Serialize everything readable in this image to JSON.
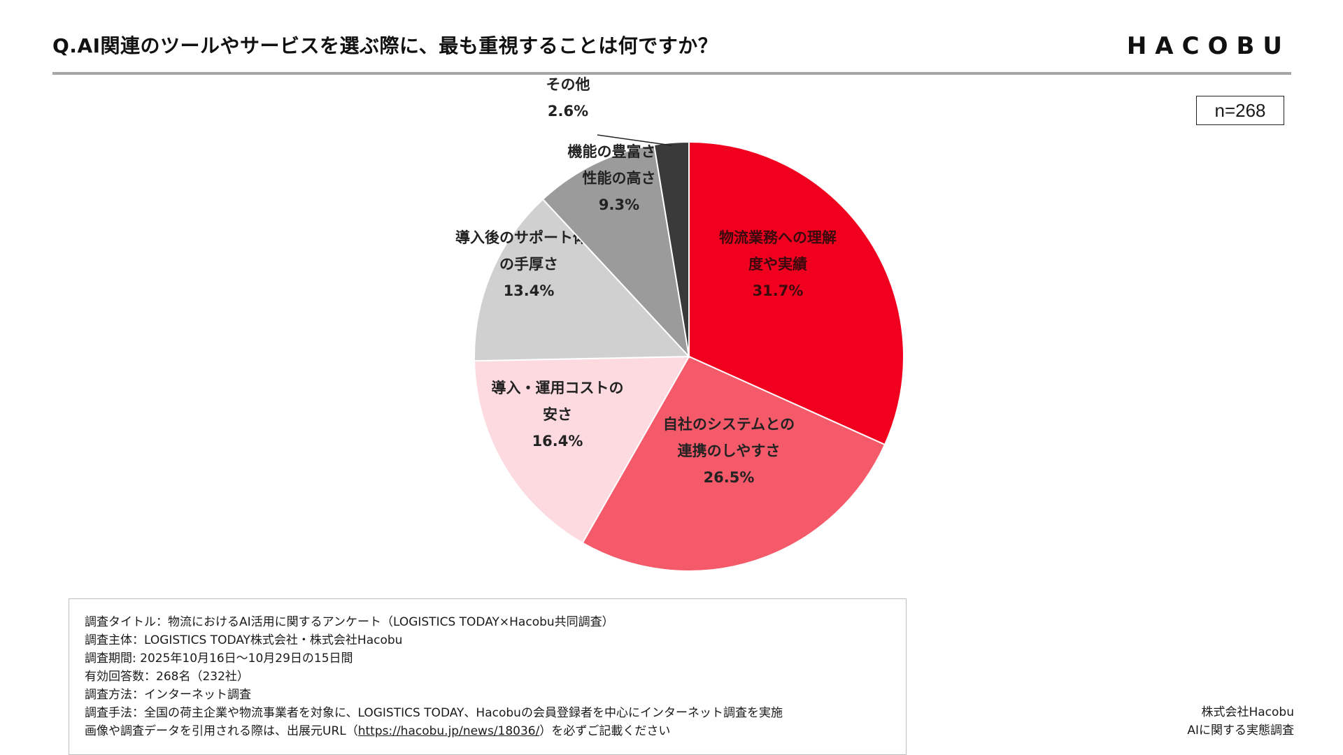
{
  "header": {
    "title": "Q.AI関連のツールやサービスを選ぶ際に、最も重視することは何ですか？",
    "logo_text": "HACOBU"
  },
  "sample_size": "n=268",
  "chart_data": {
    "type": "pie",
    "unit": "%",
    "start": "12 o'clock, clockwise",
    "slices": [
      {
        "label_lines": [
          "物流業務への理解",
          "度や実績"
        ],
        "value": 31.7,
        "display": "31.7%",
        "color": "#F0001E",
        "text_color": "#3a0a0f"
      },
      {
        "label_lines": [
          "自社のシステムとの",
          "連携のしやすさ"
        ],
        "value": 26.5,
        "display": "26.5%",
        "color": "#F55A6A",
        "text_color": "#222222"
      },
      {
        "label_lines": [
          "導入・運用コストの",
          "安さ"
        ],
        "value": 16.4,
        "display": "16.4%",
        "color": "#FDDADF",
        "text_color": "#222222"
      },
      {
        "label_lines": [
          "導入後のサポート体制",
          "の手厚さ"
        ],
        "value": 13.4,
        "display": "13.4%",
        "color": "#D0D0D0",
        "text_color": "#222222"
      },
      {
        "label_lines": [
          "機能の豊富さ・",
          "性能の高さ"
        ],
        "value": 9.3,
        "display": "9.3%",
        "color": "#9B9B9B",
        "text_color": "#222222"
      },
      {
        "label_lines": [
          "その他"
        ],
        "value": 2.6,
        "display": "2.6%",
        "color": "#3A3A3A",
        "text_color": "#222222",
        "callout": true
      }
    ]
  },
  "survey_notes": {
    "lines": [
      "調査タイトル：物流におけるAI活用に関するアンケート（LOGISTICS TODAY×Hacobu共同調査）",
      "調査主体：LOGISTICS TODAY株式会社・株式会社Hacobu",
      "調査期間: 2025年10月16日～10月29日の15日間",
      "有効回答数：268名（232社）",
      "調査方法：インターネット調査",
      "調査手法：全国の荷主企業や物流事業者を対象に、LOGISTICS TODAY、Hacobuの会員登録者を中心にインターネット調査を実施"
    ],
    "citation_prefix": "画像や調査データを引用される際は、出展元URL（",
    "citation_url": "https://hacobu.jp/news/18036/",
    "citation_suffix": "）を必ずご記載ください"
  },
  "footer": {
    "company": "株式会社Hacobu",
    "report": "AIに関する実態調査"
  }
}
